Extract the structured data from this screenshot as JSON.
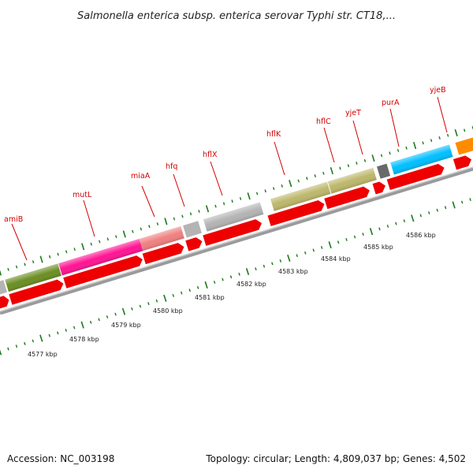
{
  "title": "Salmonella enterica subsp. enterica serovar Typhi str. CT18,...",
  "footer": {
    "accession": "Accession: NC_003198",
    "summary": "Topology: circular; Length: 4,809,037 bp; Genes: 4,502"
  },
  "genes": [
    {
      "name": "amiB",
      "color": "#6b8e23"
    },
    {
      "name": "mutL",
      "color": "#ff1493"
    },
    {
      "name": "miaA",
      "color": "#f08080"
    },
    {
      "name": "hfq",
      "color": "#b4b4b4"
    },
    {
      "name": "hflX",
      "color": "#b4b4b4"
    },
    {
      "name": "hflK",
      "color": "#bdb76b"
    },
    {
      "name": "hflC",
      "color": "#bdb76b"
    },
    {
      "name": "yjeT",
      "color": "#696969"
    },
    {
      "name": "purA",
      "color": "#00bfff"
    },
    {
      "name": "yjeB",
      "color": "#ff8c00"
    }
  ],
  "kbp_labels": [
    "4577 kbp",
    "4578 kbp",
    "4579 kbp",
    "4580 kbp",
    "4581 kbp",
    "4582 kbp",
    "4583 kbp",
    "4584 kbp",
    "4585 kbp",
    "4586 kbp"
  ],
  "colors": {
    "arrow": "#ee0000",
    "tick": "#1a7a1a",
    "backbone": "#888888",
    "label": "#d40000"
  }
}
